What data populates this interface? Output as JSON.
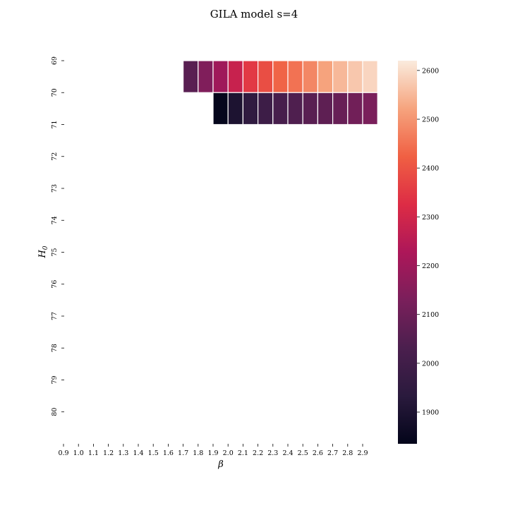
{
  "chart_data": {
    "type": "heatmap",
    "title": "GILA model s=4",
    "xlabel": "β",
    "ylabel": "H",
    "ylabel_subscript": "0",
    "x": [
      "0.9",
      "1.0",
      "1.1",
      "1.2",
      "1.3",
      "1.4",
      "1.5",
      "1.6",
      "1.7",
      "1.8",
      "1.9",
      "2.0",
      "2.1",
      "2.2",
      "2.3",
      "2.4",
      "2.5",
      "2.6",
      "2.7",
      "2.8",
      "2.9"
    ],
    "y": [
      "69",
      "70",
      "71",
      "72",
      "73",
      "74",
      "75",
      "76",
      "77",
      "78",
      "79",
      "80"
    ],
    "values": [
      [
        null,
        null,
        null,
        null,
        null,
        null,
        null,
        null,
        2060,
        2140,
        2200,
        2280,
        2350,
        2390,
        2430,
        2450,
        2480,
        2520,
        2550,
        2570,
        2590
      ],
      [
        null,
        null,
        null,
        null,
        null,
        null,
        null,
        null,
        null,
        null,
        1840,
        1900,
        1950,
        1990,
        2020,
        2040,
        2060,
        2070,
        2090,
        2110,
        2130
      ],
      [
        null,
        null,
        null,
        null,
        null,
        null,
        null,
        null,
        null,
        null,
        null,
        null,
        null,
        null,
        null,
        null,
        null,
        null,
        null,
        null,
        null
      ],
      [
        null,
        null,
        null,
        null,
        null,
        null,
        null,
        null,
        null,
        null,
        null,
        null,
        null,
        null,
        null,
        null,
        null,
        null,
        null,
        null,
        null
      ],
      [
        null,
        null,
        null,
        null,
        null,
        null,
        null,
        null,
        null,
        null,
        null,
        null,
        null,
        null,
        null,
        null,
        null,
        null,
        null,
        null,
        null
      ],
      [
        null,
        null,
        null,
        null,
        null,
        null,
        null,
        null,
        null,
        null,
        null,
        null,
        null,
        null,
        null,
        null,
        null,
        null,
        null,
        null,
        null
      ],
      [
        null,
        null,
        null,
        null,
        null,
        null,
        null,
        null,
        null,
        null,
        null,
        null,
        null,
        null,
        null,
        null,
        null,
        null,
        null,
        null,
        null
      ],
      [
        null,
        null,
        null,
        null,
        null,
        null,
        null,
        null,
        null,
        null,
        null,
        null,
        null,
        null,
        null,
        null,
        null,
        null,
        null,
        null,
        null
      ],
      [
        null,
        null,
        null,
        null,
        null,
        null,
        null,
        null,
        null,
        null,
        null,
        null,
        null,
        null,
        null,
        null,
        null,
        null,
        null,
        null,
        null
      ],
      [
        null,
        null,
        null,
        null,
        null,
        null,
        null,
        null,
        null,
        null,
        null,
        null,
        null,
        null,
        null,
        null,
        null,
        null,
        null,
        null,
        null
      ],
      [
        null,
        null,
        null,
        null,
        null,
        null,
        null,
        null,
        null,
        null,
        null,
        null,
        null,
        null,
        null,
        null,
        null,
        null,
        null,
        null,
        null
      ],
      [
        null,
        null,
        null,
        null,
        null,
        null,
        null,
        null,
        null,
        null,
        null,
        null,
        null,
        null,
        null,
        null,
        null,
        null,
        null,
        null,
        null
      ]
    ],
    "colorbar": {
      "colormap": "rocket",
      "vmin": 1835,
      "vmax": 2620,
      "ticks": [
        1900,
        2000,
        2100,
        2200,
        2300,
        2400,
        2500,
        2600
      ]
    },
    "grid": false
  }
}
